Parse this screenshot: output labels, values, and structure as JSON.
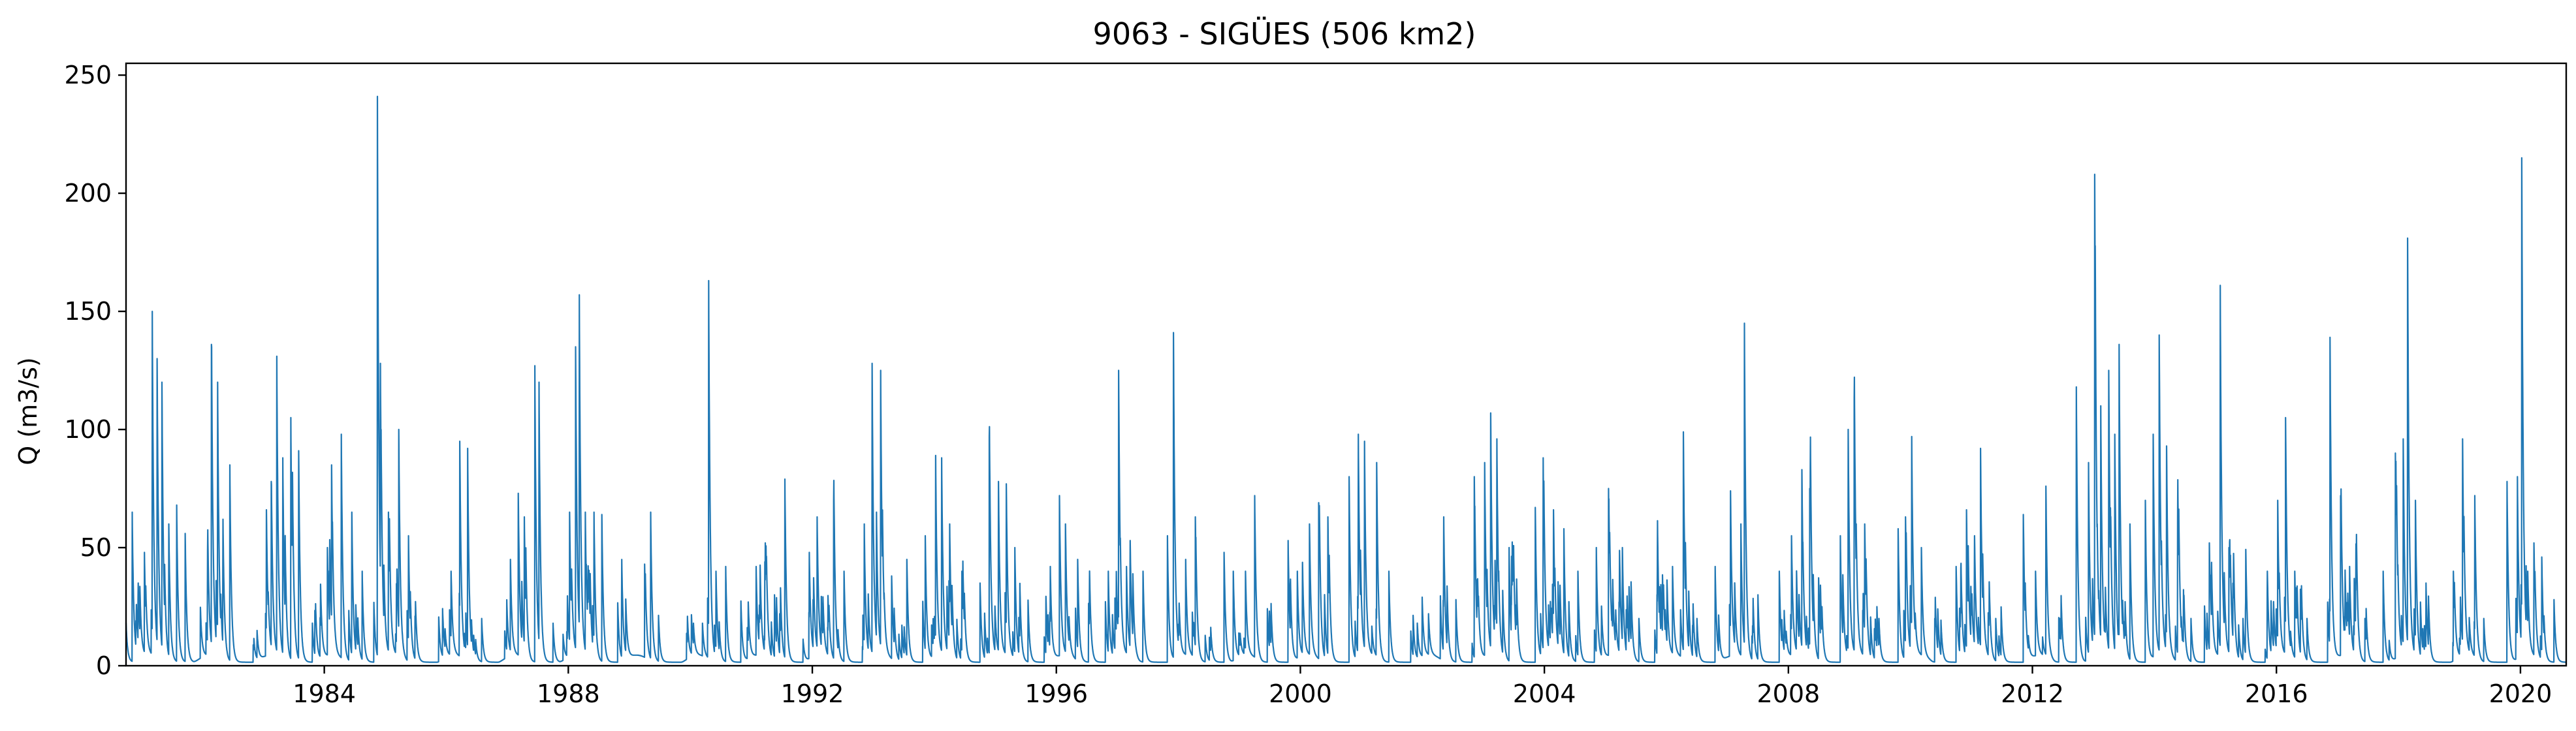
{
  "chart_data": {
    "type": "line",
    "title": "9063 - SIGÜES (506 km2)",
    "xlabel": "",
    "ylabel": "Q (m3/s)",
    "xlim": [
      1980.75,
      2020.75
    ],
    "ylim": [
      0,
      255
    ],
    "x_ticks": [
      "1984",
      "1988",
      "1992",
      "1996",
      "2000",
      "2004",
      "2008",
      "2012",
      "2016",
      "2020"
    ],
    "y_ticks": [
      0,
      50,
      100,
      150,
      200,
      250
    ],
    "grid": false,
    "legend": "none",
    "color": "#1f77b4",
    "peaks": [
      [
        1980.85,
        65
      ],
      [
        1980.95,
        35
      ],
      [
        1981.05,
        48
      ],
      [
        1981.18,
        150
      ],
      [
        1981.26,
        130
      ],
      [
        1981.34,
        120
      ],
      [
        1981.45,
        60
      ],
      [
        1981.58,
        68
      ],
      [
        1981.72,
        56
      ],
      [
        1982.15,
        136
      ],
      [
        1982.25,
        120
      ],
      [
        1982.34,
        62
      ],
      [
        1982.45,
        85
      ],
      [
        1983.05,
        66
      ],
      [
        1983.13,
        78
      ],
      [
        1983.22,
        131
      ],
      [
        1983.32,
        88
      ],
      [
        1983.45,
        105
      ],
      [
        1983.58,
        91
      ],
      [
        1984.05,
        50
      ],
      [
        1984.12,
        85
      ],
      [
        1984.28,
        98
      ],
      [
        1984.45,
        65
      ],
      [
        1984.62,
        40
      ],
      [
        1984.87,
        241
      ],
      [
        1984.92,
        128
      ],
      [
        1985.05,
        65
      ],
      [
        1985.22,
        100
      ],
      [
        1985.38,
        55
      ],
      [
        1986.08,
        40
      ],
      [
        1986.22,
        95
      ],
      [
        1986.35,
        92
      ],
      [
        1986.58,
        20
      ],
      [
        1987.05,
        45
      ],
      [
        1987.18,
        73
      ],
      [
        1987.28,
        63
      ],
      [
        1987.45,
        127
      ],
      [
        1987.52,
        120
      ],
      [
        1987.75,
        18
      ],
      [
        1988.02,
        65
      ],
      [
        1988.12,
        135
      ],
      [
        1988.18,
        157
      ],
      [
        1988.28,
        65
      ],
      [
        1988.42,
        65
      ],
      [
        1988.55,
        64
      ],
      [
        1989.25,
        43
      ],
      [
        1989.35,
        65
      ],
      [
        1990.05,
        18
      ],
      [
        1990.2,
        18
      ],
      [
        1990.3,
        163
      ],
      [
        1990.42,
        40
      ],
      [
        1990.58,
        42
      ],
      [
        1990.95,
        27
      ],
      [
        1991.08,
        42
      ],
      [
        1991.22,
        44
      ],
      [
        1991.38,
        30
      ],
      [
        1991.55,
        79
      ],
      [
        1991.95,
        48
      ],
      [
        1992.08,
        63
      ],
      [
        1992.35,
        70
      ],
      [
        1992.52,
        40
      ],
      [
        1992.85,
        60
      ],
      [
        1992.98,
        128
      ],
      [
        1993.05,
        65
      ],
      [
        1993.12,
        125
      ],
      [
        1993.3,
        38
      ],
      [
        1993.55,
        45
      ],
      [
        1993.85,
        55
      ],
      [
        1994.02,
        89
      ],
      [
        1994.12,
        88
      ],
      [
        1994.25,
        60
      ],
      [
        1994.45,
        40
      ],
      [
        1994.75,
        35
      ],
      [
        1994.9,
        97
      ],
      [
        1995.05,
        78
      ],
      [
        1995.18,
        77
      ],
      [
        1995.32,
        50
      ],
      [
        1995.9,
        42
      ],
      [
        1996.05,
        72
      ],
      [
        1996.15,
        60
      ],
      [
        1996.35,
        45
      ],
      [
        1996.85,
        40
      ],
      [
        1997.02,
        125
      ],
      [
        1997.15,
        42
      ],
      [
        1997.42,
        40
      ],
      [
        1997.82,
        55
      ],
      [
        1997.92,
        141
      ],
      [
        1998.12,
        45
      ],
      [
        1998.28,
        63
      ],
      [
        1998.75,
        48
      ],
      [
        1998.9,
        40
      ],
      [
        1999.1,
        40
      ],
      [
        1999.25,
        72
      ],
      [
        1999.8,
        53
      ],
      [
        1999.95,
        40
      ],
      [
        2000.15,
        60
      ],
      [
        2000.3,
        69
      ],
      [
        2000.45,
        63
      ],
      [
        2000.8,
        80
      ],
      [
        2000.95,
        98
      ],
      [
        2001.05,
        95
      ],
      [
        2001.25,
        86
      ],
      [
        2001.45,
        40
      ],
      [
        2001.85,
        16
      ],
      [
        2002.1,
        22
      ],
      [
        2002.35,
        63
      ],
      [
        2002.55,
        28
      ],
      [
        2002.85,
        80
      ],
      [
        2003.02,
        86
      ],
      [
        2003.12,
        107
      ],
      [
        2003.22,
        96
      ],
      [
        2003.42,
        50
      ],
      [
        2003.85,
        67
      ],
      [
        2003.98,
        88
      ],
      [
        2004.15,
        66
      ],
      [
        2004.32,
        58
      ],
      [
        2004.55,
        40
      ],
      [
        2004.85,
        50
      ],
      [
        2005.05,
        75
      ],
      [
        2005.28,
        50
      ],
      [
        2005.55,
        20
      ],
      [
        2005.85,
        40
      ],
      [
        2006.1,
        42
      ],
      [
        2006.28,
        99
      ],
      [
        2006.5,
        20
      ],
      [
        2006.8,
        42
      ],
      [
        2007.05,
        74
      ],
      [
        2007.22,
        60
      ],
      [
        2007.28,
        145
      ],
      [
        2007.5,
        30
      ],
      [
        2007.85,
        40
      ],
      [
        2008.05,
        55
      ],
      [
        2008.22,
        83
      ],
      [
        2008.35,
        75
      ],
      [
        2008.55,
        25
      ],
      [
        2008.85,
        55
      ],
      [
        2008.98,
        100
      ],
      [
        2009.08,
        113
      ],
      [
        2009.25,
        60
      ],
      [
        2009.45,
        25
      ],
      [
        2009.8,
        58
      ],
      [
        2009.92,
        63
      ],
      [
        2010.02,
        97
      ],
      [
        2010.18,
        50
      ],
      [
        2010.4,
        20
      ],
      [
        2010.75,
        42
      ],
      [
        2010.92,
        66
      ],
      [
        2011.05,
        55
      ],
      [
        2011.15,
        92
      ],
      [
        2011.4,
        20
      ],
      [
        2011.85,
        64
      ],
      [
        2012.05,
        40
      ],
      [
        2012.22,
        76
      ],
      [
        2012.45,
        20
      ],
      [
        2012.72,
        118
      ],
      [
        2012.92,
        86
      ],
      [
        2013.02,
        208
      ],
      [
        2013.12,
        110
      ],
      [
        2013.25,
        125
      ],
      [
        2013.35,
        98
      ],
      [
        2013.42,
        136
      ],
      [
        2013.6,
        60
      ],
      [
        2013.85,
        70
      ],
      [
        2013.98,
        98
      ],
      [
        2014.08,
        140
      ],
      [
        2014.2,
        93
      ],
      [
        2014.38,
        62
      ],
      [
        2014.6,
        20
      ],
      [
        2014.9,
        52
      ],
      [
        2015.08,
        161
      ],
      [
        2015.22,
        50
      ],
      [
        2015.45,
        20
      ],
      [
        2015.85,
        40
      ],
      [
        2016.02,
        70
      ],
      [
        2016.15,
        105
      ],
      [
        2016.3,
        40
      ],
      [
        2016.5,
        20
      ],
      [
        2016.88,
        139
      ],
      [
        2017.05,
        72
      ],
      [
        2017.2,
        42
      ],
      [
        2017.45,
        20
      ],
      [
        2017.75,
        40
      ],
      [
        2017.95,
        90
      ],
      [
        2018.08,
        96
      ],
      [
        2018.15,
        181
      ],
      [
        2018.28,
        70
      ],
      [
        2018.45,
        35
      ],
      [
        2018.9,
        40
      ],
      [
        2019.05,
        96
      ],
      [
        2019.25,
        72
      ],
      [
        2019.4,
        20
      ],
      [
        2019.78,
        78
      ],
      [
        2019.95,
        80
      ],
      [
        2020.02,
        215
      ],
      [
        2020.12,
        40
      ],
      [
        2020.22,
        52
      ],
      [
        2020.35,
        46
      ],
      [
        2020.55,
        28
      ]
    ]
  }
}
